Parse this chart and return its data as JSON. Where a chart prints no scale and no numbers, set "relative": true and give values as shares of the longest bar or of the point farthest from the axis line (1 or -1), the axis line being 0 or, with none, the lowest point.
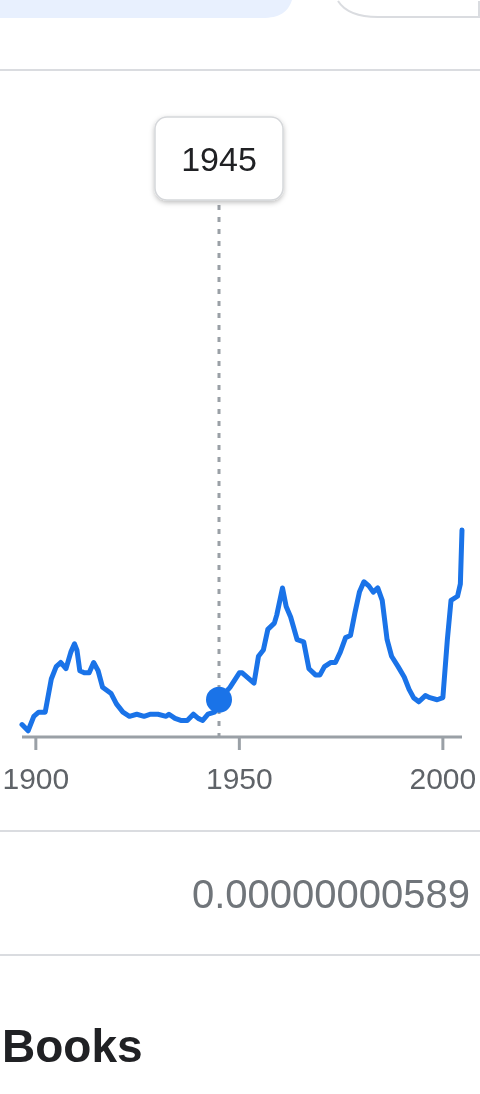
{
  "chart_data": {
    "type": "line",
    "relative": true,
    "xlim": [
      1896.6,
      2004.7
    ],
    "xticks": [
      1900,
      1950,
      2000
    ],
    "series": [
      {
        "color": "#1a73e8",
        "x": [
          1896.6,
          1898.1,
          1899.5,
          1900.7,
          1902.3,
          1903.8,
          1905.0,
          1906.1,
          1907.4,
          1908.6,
          1909.5,
          1910.1,
          1910.8,
          1911.9,
          1913.1,
          1914.2,
          1915.3,
          1916.4,
          1918.5,
          1919.8,
          1921.4,
          1923.0,
          1924.8,
          1926.6,
          1928.2,
          1930.0,
          1932.0,
          1932.7,
          1934.2,
          1935.6,
          1937.2,
          1938.7,
          1939.9,
          1941.0,
          1942.3,
          1943.9,
          1945.0,
          1947.7,
          1950.0,
          1950.7,
          1953.6,
          1954.7,
          1955.9,
          1957.0,
          1958.6,
          1959.2,
          1960.6,
          1961.5,
          1962.6,
          1964.2,
          1965.8,
          1967.1,
          1968.7,
          1969.8,
          1970.9,
          1972.5,
          1973.6,
          1974.8,
          1976.1,
          1977.3,
          1978.4,
          1979.5,
          1980.6,
          1981.8,
          1982.9,
          1984.0,
          1985.1,
          1986.3,
          1987.4,
          1989.0,
          1990.5,
          1991.7,
          1992.8,
          1994.1,
          1995.7,
          1996.8,
          1998.6,
          2000.0,
          2001.1,
          2002.0,
          2003.6,
          2004.3,
          2004.7
        ],
        "values": [
          0.06,
          0.03,
          0.1,
          0.12,
          0.12,
          0.28,
          0.34,
          0.36,
          0.33,
          0.41,
          0.45,
          0.42,
          0.32,
          0.31,
          0.31,
          0.36,
          0.32,
          0.24,
          0.21,
          0.16,
          0.12,
          0.1,
          0.11,
          0.1,
          0.11,
          0.11,
          0.1,
          0.11,
          0.09,
          0.08,
          0.08,
          0.11,
          0.09,
          0.08,
          0.11,
          0.12,
          0.18,
          0.24,
          0.31,
          0.31,
          0.26,
          0.39,
          0.42,
          0.52,
          0.55,
          0.59,
          0.72,
          0.63,
          0.58,
          0.47,
          0.46,
          0.33,
          0.3,
          0.3,
          0.34,
          0.36,
          0.36,
          0.41,
          0.48,
          0.49,
          0.6,
          0.7,
          0.75,
          0.73,
          0.7,
          0.72,
          0.66,
          0.47,
          0.39,
          0.34,
          0.29,
          0.23,
          0.19,
          0.17,
          0.2,
          0.19,
          0.18,
          0.19,
          0.47,
          0.66,
          0.68,
          0.74,
          1.0
        ]
      },
      {
        "type": "scatter",
        "color": "#1a73e8",
        "marker": "circle",
        "x": [
          1945
        ],
        "values": [
          0.18
        ]
      }
    ],
    "ref_lines": [
      {
        "axis": "x",
        "value": 1945,
        "label": "1945",
        "line_style": "dashed",
        "color": "#9aa0a6"
      }
    ],
    "annotations": [
      "0.00000000589",
      "Books"
    ]
  }
}
